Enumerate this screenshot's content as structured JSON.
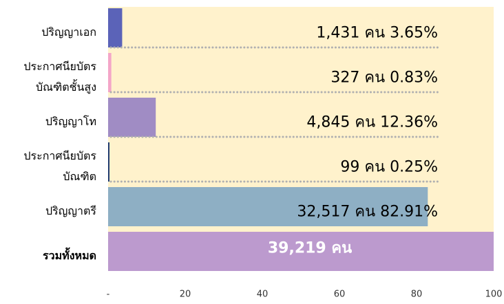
{
  "chart_data": {
    "type": "bar",
    "orientation": "horizontal",
    "categories": [
      "ปริญญาเอก",
      "ประกาศนียบัตร บัณฑิตชั้นสูง",
      "ปริญญาโท",
      "ประกาศนียบัตร บัณฑิต",
      "ปริญญาตรี",
      "รวมทั้งหมด"
    ],
    "values": [
      3.65,
      0.83,
      12.36,
      0.25,
      82.91,
      100
    ],
    "value_labels": [
      "1,431 คน  3.65%",
      "327 คน  0.83%",
      "4,845 คน 12.36%",
      "99 คน  0.25%",
      "32,517 คน 82.91%",
      "39,219 คน"
    ],
    "colors": [
      "#5b63b8",
      "#f4a6c8",
      "#a08cc4",
      "#1f3a6e",
      "#8eafc4",
      "#bc9ace"
    ],
    "xlim": [
      0,
      100
    ],
    "xticks": [
      {
        "value": 0,
        "label": "-"
      },
      20,
      40,
      60,
      80,
      100
    ],
    "background": "#fff2cc"
  }
}
